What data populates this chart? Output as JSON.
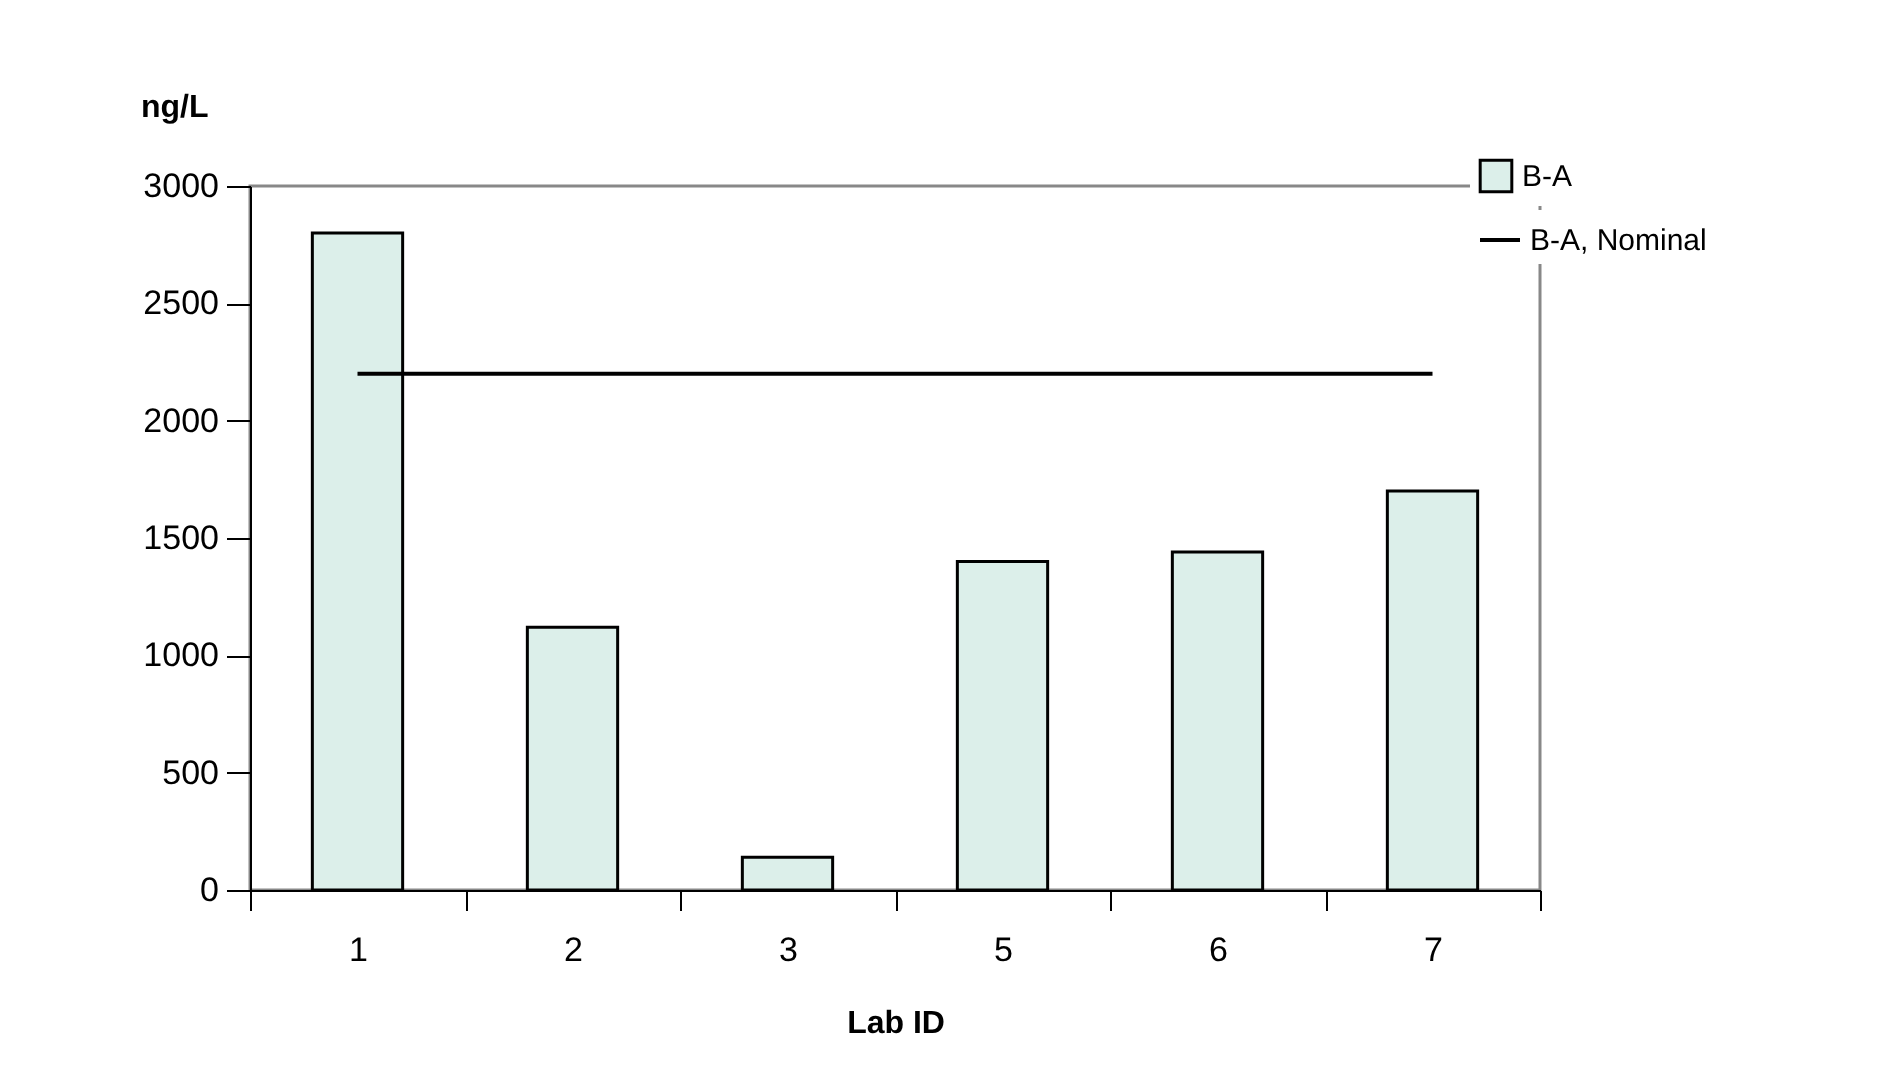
{
  "chart_data": {
    "type": "bar",
    "xlabel": "Lab ID",
    "ylabel": "ng/L",
    "categories": [
      "1",
      "2",
      "3",
      "5",
      "6",
      "7"
    ],
    "series": [
      {
        "name": "B-A",
        "color": "#dcefea",
        "values": [
          2800,
          1120,
          140,
          1400,
          1440,
          1700
        ]
      },
      {
        "name": "B-A, Nominal",
        "type": "line",
        "color": "#000000",
        "values": [
          2200,
          2200,
          2200,
          2200,
          2200,
          2200
        ]
      }
    ],
    "ylim": [
      0,
      3000
    ],
    "yticks": [
      0,
      500,
      1000,
      1500,
      2000,
      2500,
      3000
    ],
    "grid": false,
    "legend": "top right"
  }
}
